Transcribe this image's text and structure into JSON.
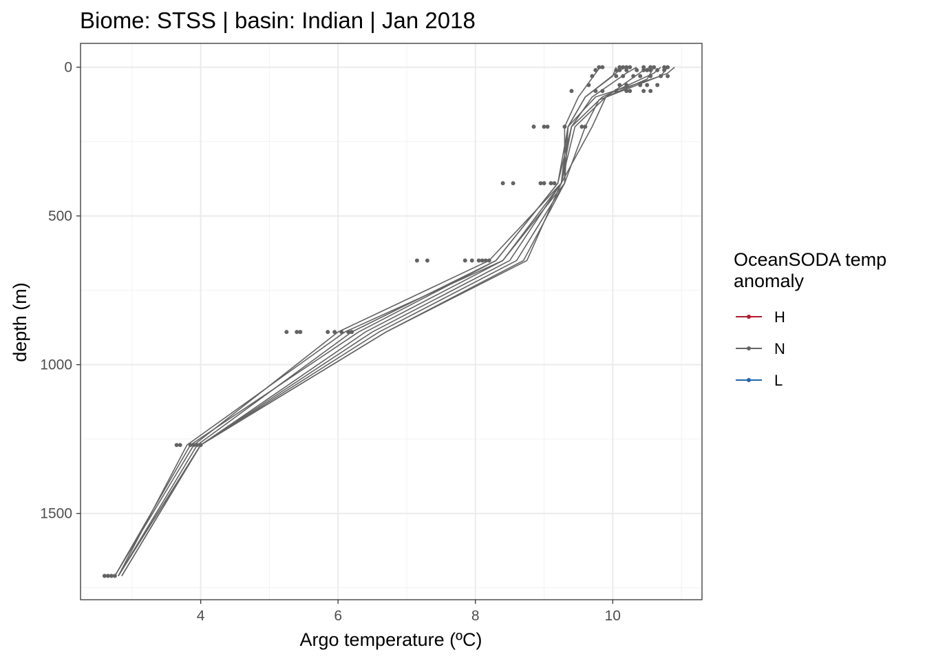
{
  "chart_data": {
    "type": "line",
    "title": "Biome: STSS | basin: Indian  | Jan 2018",
    "xlabel": "Argo temperature (ºC)",
    "ylabel": "depth (m)",
    "xlim": [
      2.25,
      11.3
    ],
    "ylim": [
      1790,
      -80
    ],
    "y_reversed": true,
    "x_ticks": [
      4,
      6,
      8,
      10
    ],
    "y_ticks": [
      0,
      500,
      1000,
      1500
    ],
    "grid": true,
    "legend": {
      "title": "OceanSODA temp\nanomaly",
      "position": "right",
      "entries": [
        {
          "label": "H",
          "color": "#b2182b"
        },
        {
          "label": "N",
          "color": "#636363"
        },
        {
          "label": "L",
          "color": "#2166ac"
        }
      ]
    },
    "series_color": "#636363",
    "series": [
      {
        "anomaly": "N",
        "points": [
          [
            9.85,
            0
          ],
          [
            9.8,
            5
          ],
          [
            9.5,
            100
          ],
          [
            9.3,
            200
          ],
          [
            9.3,
            390
          ],
          [
            8.4,
            650
          ],
          [
            6.1,
            890
          ],
          [
            3.8,
            1270
          ],
          [
            2.8,
            1710
          ]
        ]
      },
      {
        "anomaly": "N",
        "points": [
          [
            10.2,
            0
          ],
          [
            10.1,
            10
          ],
          [
            9.6,
            100
          ],
          [
            9.35,
            200
          ],
          [
            9.25,
            390
          ],
          [
            8.2,
            650
          ],
          [
            6.0,
            890
          ],
          [
            3.9,
            1270
          ],
          [
            2.75,
            1710
          ]
        ]
      },
      {
        "anomaly": "N",
        "points": [
          [
            10.35,
            0
          ],
          [
            10.2,
            20
          ],
          [
            9.7,
            100
          ],
          [
            9.4,
            200
          ],
          [
            9.2,
            390
          ],
          [
            8.3,
            650
          ],
          [
            6.2,
            890
          ],
          [
            3.95,
            1270
          ],
          [
            2.8,
            1710
          ]
        ]
      },
      {
        "anomaly": "N",
        "points": [
          [
            10.55,
            0
          ],
          [
            10.45,
            10
          ],
          [
            9.9,
            100
          ],
          [
            9.45,
            200
          ],
          [
            9.25,
            390
          ],
          [
            8.4,
            650
          ],
          [
            6.4,
            890
          ],
          [
            4.0,
            1270
          ],
          [
            2.8,
            1710
          ]
        ]
      },
      {
        "anomaly": "N",
        "points": [
          [
            10.7,
            0
          ],
          [
            10.6,
            20
          ],
          [
            9.85,
            100
          ],
          [
            9.4,
            200
          ],
          [
            9.25,
            390
          ],
          [
            8.5,
            650
          ],
          [
            6.5,
            890
          ],
          [
            4.0,
            1270
          ],
          [
            2.85,
            1710
          ]
        ]
      },
      {
        "anomaly": "N",
        "points": [
          [
            10.8,
            0
          ],
          [
            10.7,
            30
          ],
          [
            9.75,
            100
          ],
          [
            9.35,
            200
          ],
          [
            9.3,
            390
          ],
          [
            8.6,
            650
          ],
          [
            6.6,
            890
          ],
          [
            4.0,
            1270
          ],
          [
            2.8,
            1710
          ]
        ]
      },
      {
        "anomaly": "N",
        "points": [
          [
            10.9,
            0
          ],
          [
            10.8,
            20
          ],
          [
            9.8,
            110
          ],
          [
            9.6,
            200
          ],
          [
            9.3,
            390
          ],
          [
            8.7,
            650
          ],
          [
            6.7,
            890
          ],
          [
            4.0,
            1270
          ],
          [
            2.8,
            1710
          ]
        ]
      },
      {
        "anomaly": "N",
        "points": [
          [
            10.6,
            0
          ],
          [
            10.5,
            40
          ],
          [
            9.9,
            100
          ],
          [
            9.7,
            200
          ],
          [
            9.25,
            390
          ],
          [
            8.75,
            650
          ],
          [
            6.7,
            890
          ],
          [
            4.0,
            1270
          ],
          [
            2.85,
            1710
          ]
        ]
      },
      {
        "anomaly": "N",
        "points": [
          [
            10.05,
            0
          ],
          [
            10.0,
            30
          ],
          [
            9.6,
            100
          ],
          [
            9.35,
            200
          ],
          [
            9.2,
            390
          ],
          [
            8.3,
            650
          ],
          [
            6.3,
            890
          ],
          [
            3.85,
            1270
          ],
          [
            2.75,
            1710
          ]
        ]
      }
    ],
    "points": [
      [
        9.8,
        0
      ],
      [
        9.85,
        0
      ],
      [
        10.1,
        0
      ],
      [
        10.15,
        0
      ],
      [
        10.2,
        0
      ],
      [
        10.25,
        0
      ],
      [
        10.45,
        0
      ],
      [
        10.55,
        0
      ],
      [
        10.6,
        0
      ],
      [
        10.75,
        0
      ],
      [
        10.8,
        0
      ],
      [
        9.75,
        10
      ],
      [
        10.05,
        10
      ],
      [
        10.1,
        10
      ],
      [
        10.2,
        10
      ],
      [
        10.35,
        10
      ],
      [
        10.45,
        10
      ],
      [
        10.5,
        10
      ],
      [
        10.55,
        10
      ],
      [
        10.65,
        10
      ],
      [
        10.75,
        10
      ],
      [
        9.7,
        30
      ],
      [
        10.05,
        30
      ],
      [
        10.15,
        30
      ],
      [
        10.3,
        30
      ],
      [
        10.4,
        30
      ],
      [
        10.55,
        30
      ],
      [
        10.7,
        30
      ],
      [
        10.8,
        30
      ],
      [
        9.65,
        60
      ],
      [
        10.1,
        60
      ],
      [
        10.2,
        60
      ],
      [
        10.4,
        60
      ],
      [
        10.5,
        60
      ],
      [
        10.65,
        60
      ],
      [
        9.4,
        80
      ],
      [
        9.75,
        80
      ],
      [
        9.85,
        80
      ],
      [
        10.05,
        80
      ],
      [
        10.2,
        80
      ],
      [
        10.25,
        80
      ],
      [
        10.45,
        80
      ],
      [
        10.55,
        80
      ],
      [
        8.85,
        200
      ],
      [
        9.0,
        200
      ],
      [
        9.05,
        200
      ],
      [
        9.3,
        200
      ],
      [
        9.55,
        200
      ],
      [
        9.6,
        200
      ],
      [
        8.4,
        390
      ],
      [
        8.55,
        390
      ],
      [
        8.95,
        390
      ],
      [
        9.0,
        390
      ],
      [
        9.1,
        390
      ],
      [
        9.15,
        390
      ],
      [
        7.15,
        650
      ],
      [
        7.3,
        650
      ],
      [
        7.85,
        650
      ],
      [
        7.95,
        650
      ],
      [
        8.05,
        650
      ],
      [
        8.1,
        650
      ],
      [
        8.15,
        650
      ],
      [
        8.2,
        650
      ],
      [
        5.25,
        890
      ],
      [
        5.4,
        890
      ],
      [
        5.45,
        890
      ],
      [
        5.85,
        890
      ],
      [
        5.95,
        890
      ],
      [
        6.05,
        890
      ],
      [
        6.15,
        890
      ],
      [
        6.2,
        890
      ],
      [
        3.65,
        1270
      ],
      [
        3.7,
        1270
      ],
      [
        3.85,
        1270
      ],
      [
        3.9,
        1270
      ],
      [
        3.95,
        1270
      ],
      [
        4.0,
        1270
      ],
      [
        2.6,
        1710
      ],
      [
        2.65,
        1710
      ],
      [
        2.7,
        1710
      ],
      [
        2.75,
        1710
      ]
    ]
  }
}
